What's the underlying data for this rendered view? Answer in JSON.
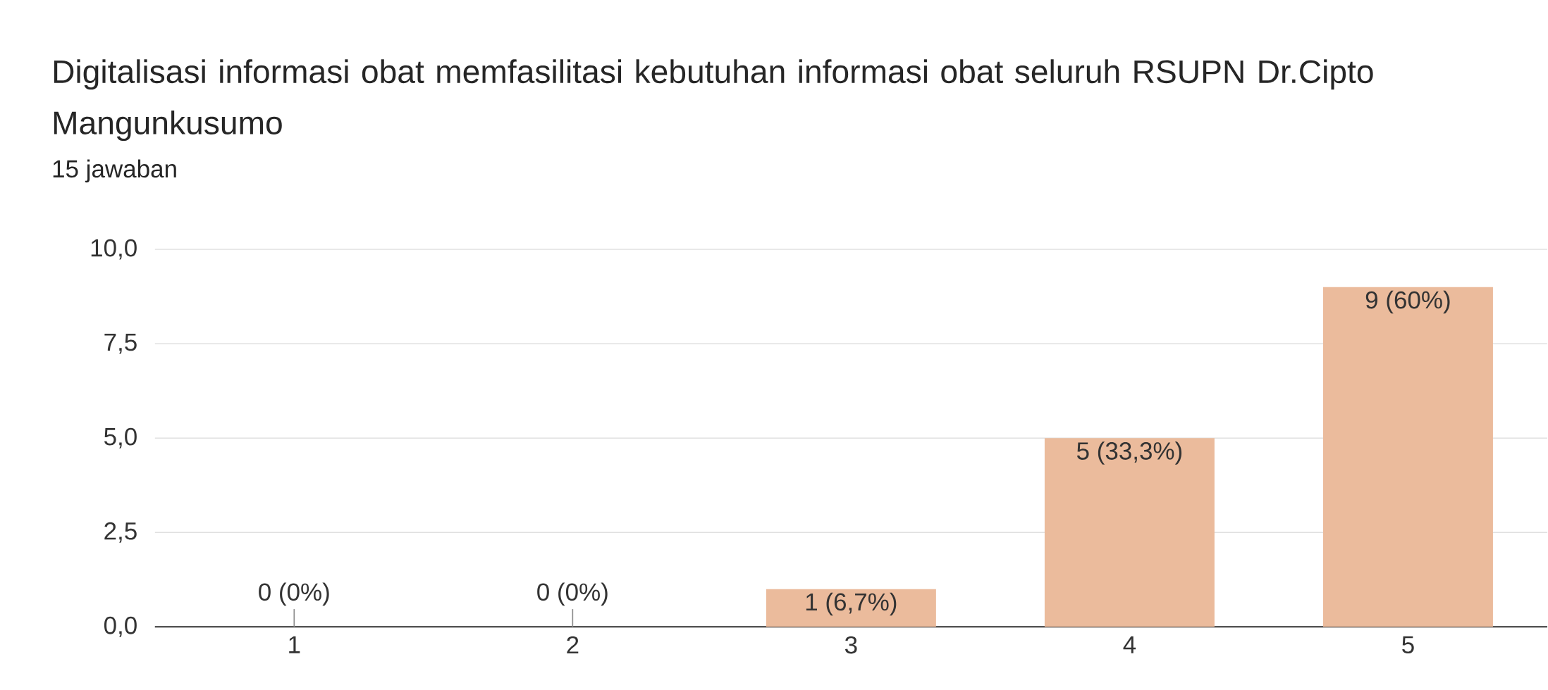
{
  "chart_data": {
    "type": "bar",
    "title": "Digitalisasi informasi obat memfasilitasi kebutuhan informasi obat seluruh RSUPN Dr.Cipto Mangunkusumo",
    "subtitle": "15 jawaban",
    "categories": [
      "1",
      "2",
      "3",
      "4",
      "5"
    ],
    "values": [
      0,
      0,
      1,
      5,
      9
    ],
    "value_labels": [
      "0 (0%)",
      "0 (0%)",
      "1 (6,7%)",
      "5 (33,3%)",
      "9 (60%)"
    ],
    "color": "#ebbb9c",
    "ylim": [
      0,
      10
    ],
    "yticks": [
      {
        "value": 0,
        "label": "0,0"
      },
      {
        "value": 2.5,
        "label": "2,5"
      },
      {
        "value": 5,
        "label": "5,0"
      },
      {
        "value": 7.5,
        "label": "7,5"
      },
      {
        "value": 10,
        "label": "10,0"
      }
    ],
    "grid": "y"
  }
}
